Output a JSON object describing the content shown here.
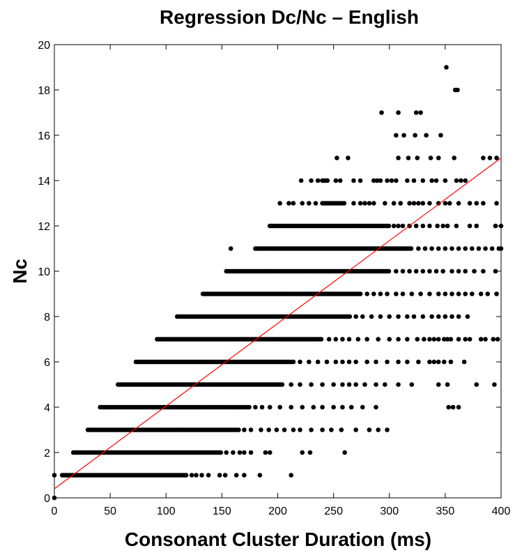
{
  "chart_data": {
    "type": "scatter",
    "title": "Regression Dc/Nc – English",
    "xlabel": "Consonant Cluster Duration (ms)",
    "ylabel": "Nc",
    "xlim": [
      0,
      400
    ],
    "ylim": [
      0,
      20
    ],
    "xticks": [
      0,
      50,
      100,
      150,
      200,
      250,
      300,
      350,
      400
    ],
    "yticks": [
      0,
      2,
      4,
      6,
      8,
      10,
      12,
      14,
      16,
      18,
      20
    ],
    "grid": false,
    "point_color": "#000000",
    "series": [
      {
        "type": "scatter",
        "bands": [
          {
            "y": 0,
            "x_ranges": [
              [
                0,
                1
              ]
            ],
            "extra_x": []
          },
          {
            "y": 1,
            "x_ranges": [
              [
                7,
                118
              ]
            ],
            "extra_x": [
              0,
              123,
              127,
              132,
              138,
              148,
              153,
              163,
              170,
              184,
              212
            ]
          },
          {
            "y": 2,
            "x_ranges": [
              [
                17,
                150
              ]
            ],
            "extra_x": [
              154,
              160,
              166,
              170,
              176,
              189,
              193,
              222,
              229,
              260
            ]
          },
          {
            "y": 3,
            "x_ranges": [
              [
                30,
                165
              ]
            ],
            "extra_x": [
              170,
              176,
              185,
              192,
              199,
              206,
              214,
              220,
              230,
              240,
              248,
              257,
              270,
              282,
              290,
              298
            ]
          },
          {
            "y": 4,
            "x_ranges": [
              [
                41,
                175
              ]
            ],
            "extra_x": [
              180,
              186,
              193,
              202,
              212,
              222,
              232,
              240,
              250,
              258,
              266,
              276,
              288,
              353,
              357,
              362
            ]
          },
          {
            "y": 5,
            "x_ranges": [
              [
                57,
                205
              ]
            ],
            "extra_x": [
              212,
              220,
              230,
              240,
              250,
              258,
              264,
              270,
              278,
              288,
              296,
              308,
              320,
              344,
              352,
              378,
              394
            ]
          },
          {
            "y": 6,
            "x_ranges": [
              [
                73,
                215
              ]
            ],
            "extra_x": [
              220,
              228,
              236,
              244,
              252,
              258,
              264,
              270,
              280,
              288,
              298,
              308,
              316,
              326,
              336,
              340,
              344,
              349,
              355,
              367
            ]
          },
          {
            "y": 7,
            "x_ranges": [
              [
                92,
                240
              ]
            ],
            "extra_x": [
              246,
              252,
              258,
              264,
              272,
              280,
              290,
              300,
              308,
              316,
              325,
              331,
              336,
              340,
              344,
              349,
              352,
              355,
              362,
              368,
              372,
              382,
              386,
              393,
              397
            ]
          },
          {
            "y": 8,
            "x_ranges": [
              [
                110,
                265
              ]
            ],
            "extra_x": [
              270,
              276,
              284,
              292,
              300,
              308,
              316,
              322,
              330,
              338,
              344,
              350,
              356,
              362,
              370
            ]
          },
          {
            "y": 9,
            "x_ranges": [
              [
                133,
                275
              ]
            ],
            "extra_x": [
              280,
              286,
              292,
              298,
              306,
              312,
              320,
              328,
              336,
              344,
              350,
              356,
              362,
              368,
              374,
              382,
              388,
              396
            ]
          },
          {
            "y": 10,
            "x_ranges": [
              [
                154,
                300
              ]
            ],
            "extra_x": [
              306,
              312,
              318,
              324,
              330,
              336,
              342,
              348,
              356,
              362,
              368,
              376,
              384,
              395
            ]
          },
          {
            "y": 11,
            "x_ranges": [
              [
                180,
                320
              ]
            ],
            "extra_x": [
              158,
              326,
              332,
              338,
              344,
              350,
              356,
              362,
              368,
              374,
              380,
              386,
              392,
              398,
              400
            ]
          },
          {
            "y": 12,
            "x_ranges": [
              [
                193,
                300
              ]
            ],
            "extra_x": [
              304,
              308,
              312,
              318,
              324,
              330,
              336,
              343,
              348,
              352,
              360,
              372,
              378,
              395,
              400
            ]
          },
          {
            "y": 13,
            "x_ranges": [
              [
                240,
                260
              ]
            ],
            "extra_x": [
              202,
              210,
              214,
              222,
              228,
              234,
              268,
              274,
              278,
              282,
              286,
              296,
              304,
              310,
              318,
              322,
              326,
              330,
              336,
              344,
              350,
              354,
              362,
              372,
              378,
              384,
              396
            ]
          },
          {
            "y": 14,
            "x_ranges": [
              [
                240,
                245
              ]
            ],
            "extra_x": [
              221,
              230,
              236,
              252,
              256,
              268,
              274,
              286,
              289,
              292,
              298,
              302,
              306,
              316,
              322,
              330,
              338,
              342,
              350,
              360,
              364,
              368
            ]
          },
          {
            "y": 15,
            "x_ranges": [],
            "extra_x": [
              253,
              263,
              308,
              317,
              325,
              337,
              344,
              358,
              384,
              390,
              396
            ]
          },
          {
            "y": 16,
            "x_ranges": [],
            "extra_x": [
              306,
              313,
              323,
              333,
              346
            ]
          },
          {
            "y": 17,
            "x_ranges": [],
            "extra_x": [
              293,
              308,
              324,
              328
            ]
          },
          {
            "y": 18,
            "x_ranges": [],
            "extra_x": [
              359,
              361
            ]
          },
          {
            "y": 19,
            "x_ranges": [],
            "extra_x": [
              351
            ]
          }
        ]
      }
    ],
    "regression_line": {
      "color": "#ff0000",
      "slope": 0.0365,
      "intercept": 0.4,
      "x_range": [
        0,
        400
      ]
    }
  }
}
